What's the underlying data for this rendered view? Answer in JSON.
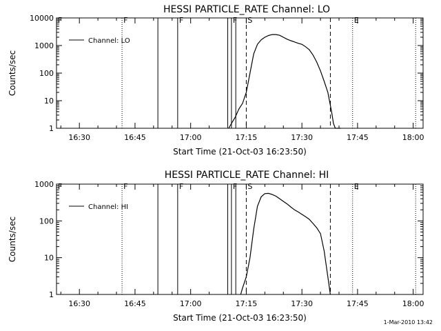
{
  "chart_data": [
    {
      "type": "line",
      "title": "HESSI PARTICLE_RATE Channel: LO",
      "xlabel": "Start Time (21-Oct-03 16:23:50)",
      "ylabel": "Counts/sec",
      "yscale": "log",
      "ylim": [
        1,
        10000
      ],
      "xlim": [
        "16:23:50",
        "18:02:40"
      ],
      "x_ticks": [
        "16:30",
        "16:45",
        "17:00",
        "17:15",
        "17:30",
        "17:45",
        "18:00"
      ],
      "y_ticks": [
        "1",
        "10",
        "100",
        "1000",
        "10000"
      ],
      "legend": {
        "entries": [
          "Channel: LO"
        ],
        "placement": "top-left"
      },
      "series": [
        {
          "name": "Channel: LO",
          "x": [
            "17:10:15",
            "17:11:00",
            "17:12:00",
            "17:13:00",
            "17:14:00",
            "17:15:00",
            "17:16:00",
            "17:17:00",
            "17:18:00",
            "17:19:00",
            "17:20:00",
            "17:21:00",
            "17:22:00",
            "17:23:00",
            "17:24:00",
            "17:25:00",
            "17:26:00",
            "17:27:00",
            "17:28:00",
            "17:29:00",
            "17:30:00",
            "17:31:00",
            "17:32:00",
            "17:33:00",
            "17:34:00",
            "17:35:00",
            "17:36:00",
            "17:37:00",
            "17:38:00",
            "17:38:30",
            "17:39:00",
            "17:40:30"
          ],
          "values": [
            1,
            1.5,
            2.5,
            5,
            8,
            20,
            100,
            500,
            1100,
            1600,
            2000,
            2300,
            2500,
            2500,
            2350,
            2000,
            1700,
            1500,
            1350,
            1200,
            1100,
            900,
            700,
            450,
            250,
            120,
            50,
            20,
            4,
            1.5,
            1,
            1
          ]
        }
      ],
      "time_markers": [
        {
          "label": "F",
          "time": "16:23:50",
          "style": "dotted"
        },
        {
          "label": "F",
          "time": "16:41:30",
          "style": "dotted"
        },
        {
          "label": "",
          "time": "16:51:10",
          "style": "solid"
        },
        {
          "label": "F",
          "time": "16:56:30",
          "style": "solid"
        },
        {
          "label": "",
          "time": "17:10:00",
          "style": "solid"
        },
        {
          "label": "F",
          "time": "17:11:00",
          "style": "solid"
        },
        {
          "label": "",
          "time": "17:12:10",
          "style": "solid"
        },
        {
          "label": "S",
          "time": "17:15:00",
          "style": "dashed"
        },
        {
          "label": "",
          "time": "17:37:40",
          "style": "dashed"
        },
        {
          "label": "E",
          "time": "17:43:40",
          "style": "dotted"
        },
        {
          "label": "",
          "time": "18:00:40",
          "style": "dotted"
        }
      ]
    },
    {
      "type": "line",
      "title": "HESSI PARTICLE_RATE Channel: HI",
      "xlabel": "Start Time (21-Oct-03 16:23:50)",
      "ylabel": "Counts/sec",
      "yscale": "log",
      "ylim": [
        1,
        1000
      ],
      "xlim": [
        "16:23:50",
        "18:02:40"
      ],
      "x_ticks": [
        "16:30",
        "16:45",
        "17:00",
        "17:15",
        "17:30",
        "17:45",
        "18:00"
      ],
      "y_ticks": [
        "1",
        "10",
        "100",
        "1000"
      ],
      "legend": {
        "entries": [
          "Channel: HI"
        ],
        "placement": "top-left"
      },
      "series": [
        {
          "name": "Channel: HI",
          "x": [
            "17:13:30",
            "17:14:00",
            "17:15:00",
            "17:16:00",
            "17:17:00",
            "17:18:00",
            "17:19:00",
            "17:20:00",
            "17:21:00",
            "17:22:00",
            "17:23:00",
            "17:24:00",
            "17:25:00",
            "17:26:00",
            "17:27:00",
            "17:28:00",
            "17:29:00",
            "17:30:00",
            "17:31:00",
            "17:32:00",
            "17:33:00",
            "17:34:00",
            "17:35:00",
            "17:36:00",
            "17:37:00",
            "17:37:40"
          ],
          "values": [
            1,
            1.5,
            3,
            10,
            60,
            250,
            450,
            550,
            560,
            520,
            470,
            400,
            340,
            290,
            240,
            200,
            175,
            150,
            130,
            110,
            85,
            65,
            45,
            15,
            3,
            1
          ]
        }
      ],
      "time_markers": [
        {
          "label": "F",
          "time": "16:23:50",
          "style": "dotted"
        },
        {
          "label": "F",
          "time": "16:41:30",
          "style": "dotted"
        },
        {
          "label": "",
          "time": "16:51:10",
          "style": "solid"
        },
        {
          "label": "F",
          "time": "16:56:30",
          "style": "solid"
        },
        {
          "label": "",
          "time": "17:10:00",
          "style": "solid"
        },
        {
          "label": "F",
          "time": "17:11:00",
          "style": "solid"
        },
        {
          "label": "",
          "time": "17:12:10",
          "style": "solid"
        },
        {
          "label": "S",
          "time": "17:15:00",
          "style": "dashed"
        },
        {
          "label": "",
          "time": "17:37:40",
          "style": "dashed"
        },
        {
          "label": "E",
          "time": "17:43:40",
          "style": "dotted"
        },
        {
          "label": "",
          "time": "18:00:40",
          "style": "dotted"
        }
      ]
    }
  ],
  "footer": {
    "timestamp": "1-Mar-2010 13:42"
  }
}
